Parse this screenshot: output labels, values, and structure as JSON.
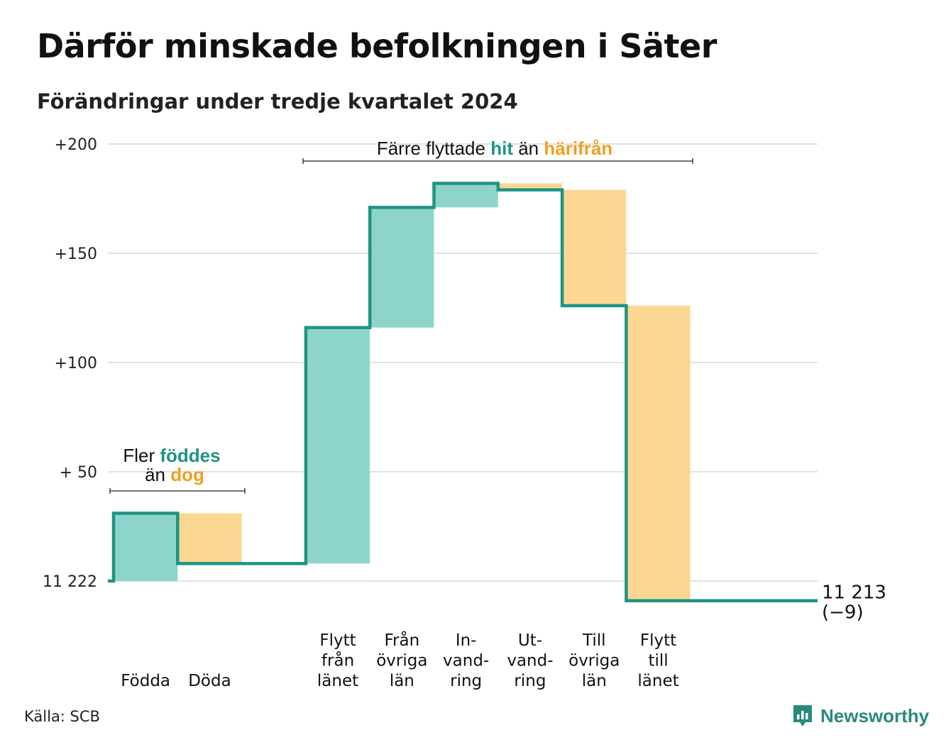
{
  "title": "Därför minskade befolkningen i Säter",
  "subtitle": "Förändringar under tredje kvartalet 2024",
  "source": "Källa: SCB",
  "brand": "Newsworthy",
  "colors": {
    "increase": "#8dd5ca",
    "decrease": "#fbd792",
    "line": "#1e9484",
    "teal_text": "#1e9484",
    "orange_text": "#f0a020",
    "grid": "#e2e2e2"
  },
  "chart_data": {
    "type": "waterfall",
    "start_value": 11222,
    "start_label": "11 222",
    "end_value": 11213,
    "end_label": "11 213",
    "end_change_label": "(−9)",
    "y_ticks": [
      {
        "value": 200,
        "label": "+200"
      },
      {
        "value": 150,
        "label": "+150"
      },
      {
        "value": 100,
        "label": "+100"
      },
      {
        "value": 50,
        "label": "+ 50"
      },
      {
        "value": 0,
        "label": "11 222"
      }
    ],
    "ylim": [
      0,
      200
    ],
    "steps": [
      {
        "label": [
          "Födda"
        ],
        "change": 31
      },
      {
        "label": [
          "Döda"
        ],
        "change": -23
      },
      {
        "label": [],
        "change": 0
      },
      {
        "label": [
          "Flytt",
          "från",
          "länet"
        ],
        "change": 108
      },
      {
        "label": [
          "Från",
          "övriga",
          "län"
        ],
        "change": 55
      },
      {
        "label": [
          "In-",
          "vand-",
          "ring"
        ],
        "change": 11
      },
      {
        "label": [
          "Ut-",
          "vand-",
          "ring"
        ],
        "change": -3
      },
      {
        "label": [
          "Till",
          "övriga",
          "län"
        ],
        "change": -53
      },
      {
        "label": [
          "Flytt",
          "till",
          "länet"
        ],
        "change": -135
      },
      {
        "label": [],
        "change": 0
      }
    ],
    "annotations": [
      {
        "line1_prefix": "Fler ",
        "line1_highlight": "föddes",
        "line2_prefix": "än ",
        "line2_highlight": "dog"
      },
      {
        "prefix": "Färre flyttade ",
        "highlight1": "hit",
        "middle": " än ",
        "highlight2": "härifrån"
      }
    ]
  }
}
